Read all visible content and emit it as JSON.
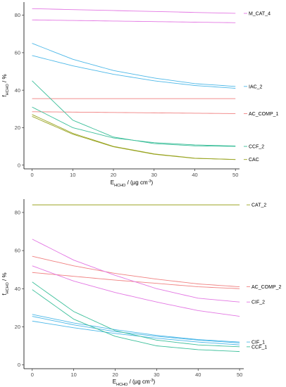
{
  "chart_data": [
    {
      "type": "line",
      "xlabel": "E_HCHO / (µg cm⁻³)",
      "ylabel": "f_HCHO / %",
      "xlim": [
        -2,
        51
      ],
      "ylim": [
        -2,
        87
      ],
      "x_ticks": [
        0,
        10,
        20,
        30,
        40,
        50
      ],
      "y_ticks": [
        0,
        20,
        40,
        60,
        80
      ],
      "grid": false,
      "legend": "right-side labels",
      "x": [
        0,
        10,
        20,
        30,
        40,
        50
      ],
      "series": [
        {
          "name": "M_CAT_4",
          "color": "#e377e3",
          "label": true,
          "values": [
            83.5,
            83,
            82.5,
            82,
            81.5,
            81
          ]
        },
        {
          "name": "",
          "color": "#e377e3",
          "label": false,
          "values": [
            77.5,
            77.2,
            76.9,
            76.6,
            76.3,
            76
          ]
        },
        {
          "name": "IAC_2",
          "color": "#4db8e8",
          "label": true,
          "values": [
            65,
            56.5,
            50.5,
            46.5,
            43.5,
            42
          ]
        },
        {
          "name": "",
          "color": "#4db8e8",
          "label": false,
          "values": [
            58.5,
            53,
            48.5,
            45,
            42.5,
            41
          ]
        },
        {
          "name": "AC_COMP_1",
          "color": "#f08080",
          "label": true,
          "values": [
            28.5,
            28.3,
            28.1,
            27.9,
            27.7,
            27.5
          ]
        },
        {
          "name": "",
          "color": "#f08080",
          "label": false,
          "values": [
            35.5,
            35.5,
            35.5,
            35.5,
            35.5,
            35.5
          ]
        },
        {
          "name": "CCF_2",
          "color": "#3cbf9a",
          "label": true,
          "values": [
            45,
            24,
            15,
            11.5,
            10.3,
            10
          ]
        },
        {
          "name": "",
          "color": "#3cbf9a",
          "label": false,
          "values": [
            31,
            20,
            14.5,
            12,
            10.8,
            10.2
          ]
        },
        {
          "name": "CAC",
          "color": "#9aa523",
          "label": true,
          "values": [
            27,
            17,
            10,
            6,
            3.7,
            3
          ]
        },
        {
          "name": "",
          "color": "#9aa523",
          "label": false,
          "values": [
            26,
            16.5,
            9.8,
            5.8,
            3.6,
            3
          ]
        }
      ]
    },
    {
      "type": "line",
      "xlabel": "E_HCHO / (µg cm⁻³)",
      "ylabel": "f_HCHO / %",
      "xlim": [
        -2,
        51
      ],
      "ylim": [
        -2,
        87
      ],
      "x_ticks": [
        0,
        10,
        20,
        30,
        40,
        50
      ],
      "y_ticks": [
        0,
        20,
        40,
        60,
        80
      ],
      "grid": false,
      "legend": "right-side labels",
      "x": [
        0,
        10,
        20,
        30,
        40,
        50
      ],
      "series": [
        {
          "name": "CAT_2",
          "color": "#9aa523",
          "label": true,
          "values": [
            84,
            84,
            84,
            84,
            84,
            84
          ]
        },
        {
          "name": "AC_COMP_2",
          "color": "#f08080",
          "label": true,
          "values": [
            57,
            52,
            48,
            45,
            42.5,
            41
          ]
        },
        {
          "name": "",
          "color": "#f08080",
          "label": false,
          "values": [
            48.5,
            46.5,
            44.5,
            42.8,
            41,
            40
          ]
        },
        {
          "name": "CIF_2",
          "color": "#e377e3",
          "label": true,
          "values": [
            66,
            55,
            47,
            40,
            35,
            33
          ]
        },
        {
          "name": "",
          "color": "#e377e3",
          "label": false,
          "values": [
            52,
            44,
            38,
            33,
            28.5,
            25.5
          ]
        },
        {
          "name": "CIF_1",
          "color": "#4db8e8",
          "label": true,
          "values": [
            26.5,
            22,
            18.5,
            15.5,
            13.3,
            12
          ]
        },
        {
          "name": "",
          "color": "#4db8e8",
          "label": false,
          "values": [
            25.5,
            21,
            17.5,
            15,
            13,
            11.5
          ]
        },
        {
          "name": "",
          "color": "#4db8e8",
          "label": false,
          "values": [
            23,
            19.5,
            16.5,
            14,
            12,
            10.5
          ]
        },
        {
          "name": "CCF_1",
          "color": "#3cbf9a",
          "label": true,
          "values": [
            43.5,
            28,
            18,
            13,
            10.5,
            9.5
          ]
        },
        {
          "name": "",
          "color": "#3cbf9a",
          "label": false,
          "values": [
            39.5,
            24,
            15,
            10,
            8,
            7
          ]
        }
      ]
    }
  ]
}
